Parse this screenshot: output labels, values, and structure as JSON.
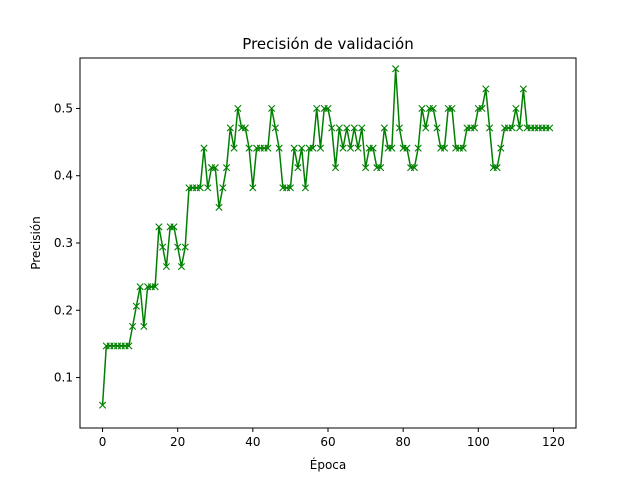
{
  "chart_data": {
    "type": "line",
    "title": "Precisión de validación",
    "xlabel": "Época",
    "ylabel": "Precisión",
    "xlim": [
      -6,
      126
    ],
    "ylim": [
      0.025,
      0.575
    ],
    "xticks": [
      0,
      20,
      40,
      60,
      80,
      100,
      120
    ],
    "yticks": [
      0.1,
      0.2,
      0.3,
      0.4,
      0.5
    ],
    "xtick_labels": [
      "0",
      "20",
      "40",
      "60",
      "80",
      "100",
      "120"
    ],
    "ytick_labels": [
      "0.1",
      "0.2",
      "0.3",
      "0.4",
      "0.5"
    ],
    "grid": false,
    "series": [
      {
        "color": "#008000",
        "marker": "x",
        "x": [
          0,
          1,
          2,
          3,
          4,
          5,
          6,
          7,
          8,
          9,
          10,
          11,
          12,
          13,
          14,
          15,
          16,
          17,
          18,
          19,
          20,
          21,
          22,
          23,
          24,
          25,
          26,
          27,
          28,
          29,
          30,
          31,
          32,
          33,
          34,
          35,
          36,
          37,
          38,
          39,
          40,
          41,
          42,
          43,
          44,
          45,
          46,
          47,
          48,
          49,
          50,
          51,
          52,
          53,
          54,
          55,
          56,
          57,
          58,
          59,
          60,
          61,
          62,
          63,
          64,
          65,
          66,
          67,
          68,
          69,
          70,
          71,
          72,
          73,
          74,
          75,
          76,
          77,
          78,
          79,
          80,
          81,
          82,
          83,
          84,
          85,
          86,
          87,
          88,
          89,
          90,
          91,
          92,
          93,
          94,
          95,
          96,
          97,
          98,
          99,
          100,
          101,
          102,
          103,
          104,
          105,
          106,
          107,
          108,
          109,
          110,
          111,
          112,
          113,
          114,
          115,
          116,
          117,
          118,
          119
        ],
        "values": [
          0.059,
          0.147,
          0.147,
          0.147,
          0.147,
          0.147,
          0.147,
          0.147,
          0.176,
          0.206,
          0.235,
          0.176,
          0.235,
          0.235,
          0.235,
          0.324,
          0.294,
          0.265,
          0.324,
          0.324,
          0.294,
          0.265,
          0.294,
          0.382,
          0.382,
          0.382,
          0.382,
          0.441,
          0.382,
          0.412,
          0.412,
          0.353,
          0.382,
          0.412,
          0.471,
          0.441,
          0.5,
          0.471,
          0.471,
          0.441,
          0.382,
          0.441,
          0.441,
          0.441,
          0.441,
          0.5,
          0.471,
          0.441,
          0.382,
          0.382,
          0.382,
          0.441,
          0.412,
          0.441,
          0.382,
          0.441,
          0.441,
          0.5,
          0.441,
          0.5,
          0.5,
          0.471,
          0.412,
          0.471,
          0.441,
          0.471,
          0.441,
          0.471,
          0.441,
          0.471,
          0.412,
          0.441,
          0.441,
          0.412,
          0.412,
          0.471,
          0.441,
          0.441,
          0.559,
          0.471,
          0.441,
          0.441,
          0.412,
          0.412,
          0.441,
          0.5,
          0.471,
          0.5,
          0.5,
          0.471,
          0.441,
          0.441,
          0.5,
          0.5,
          0.441,
          0.441,
          0.441,
          0.471,
          0.471,
          0.471,
          0.5,
          0.5,
          0.529,
          0.471,
          0.412,
          0.412,
          0.441,
          0.471,
          0.471,
          0.471,
          0.5,
          0.471,
          0.529,
          0.471,
          0.471,
          0.471,
          0.471,
          0.471,
          0.471,
          0.471
        ]
      }
    ]
  }
}
